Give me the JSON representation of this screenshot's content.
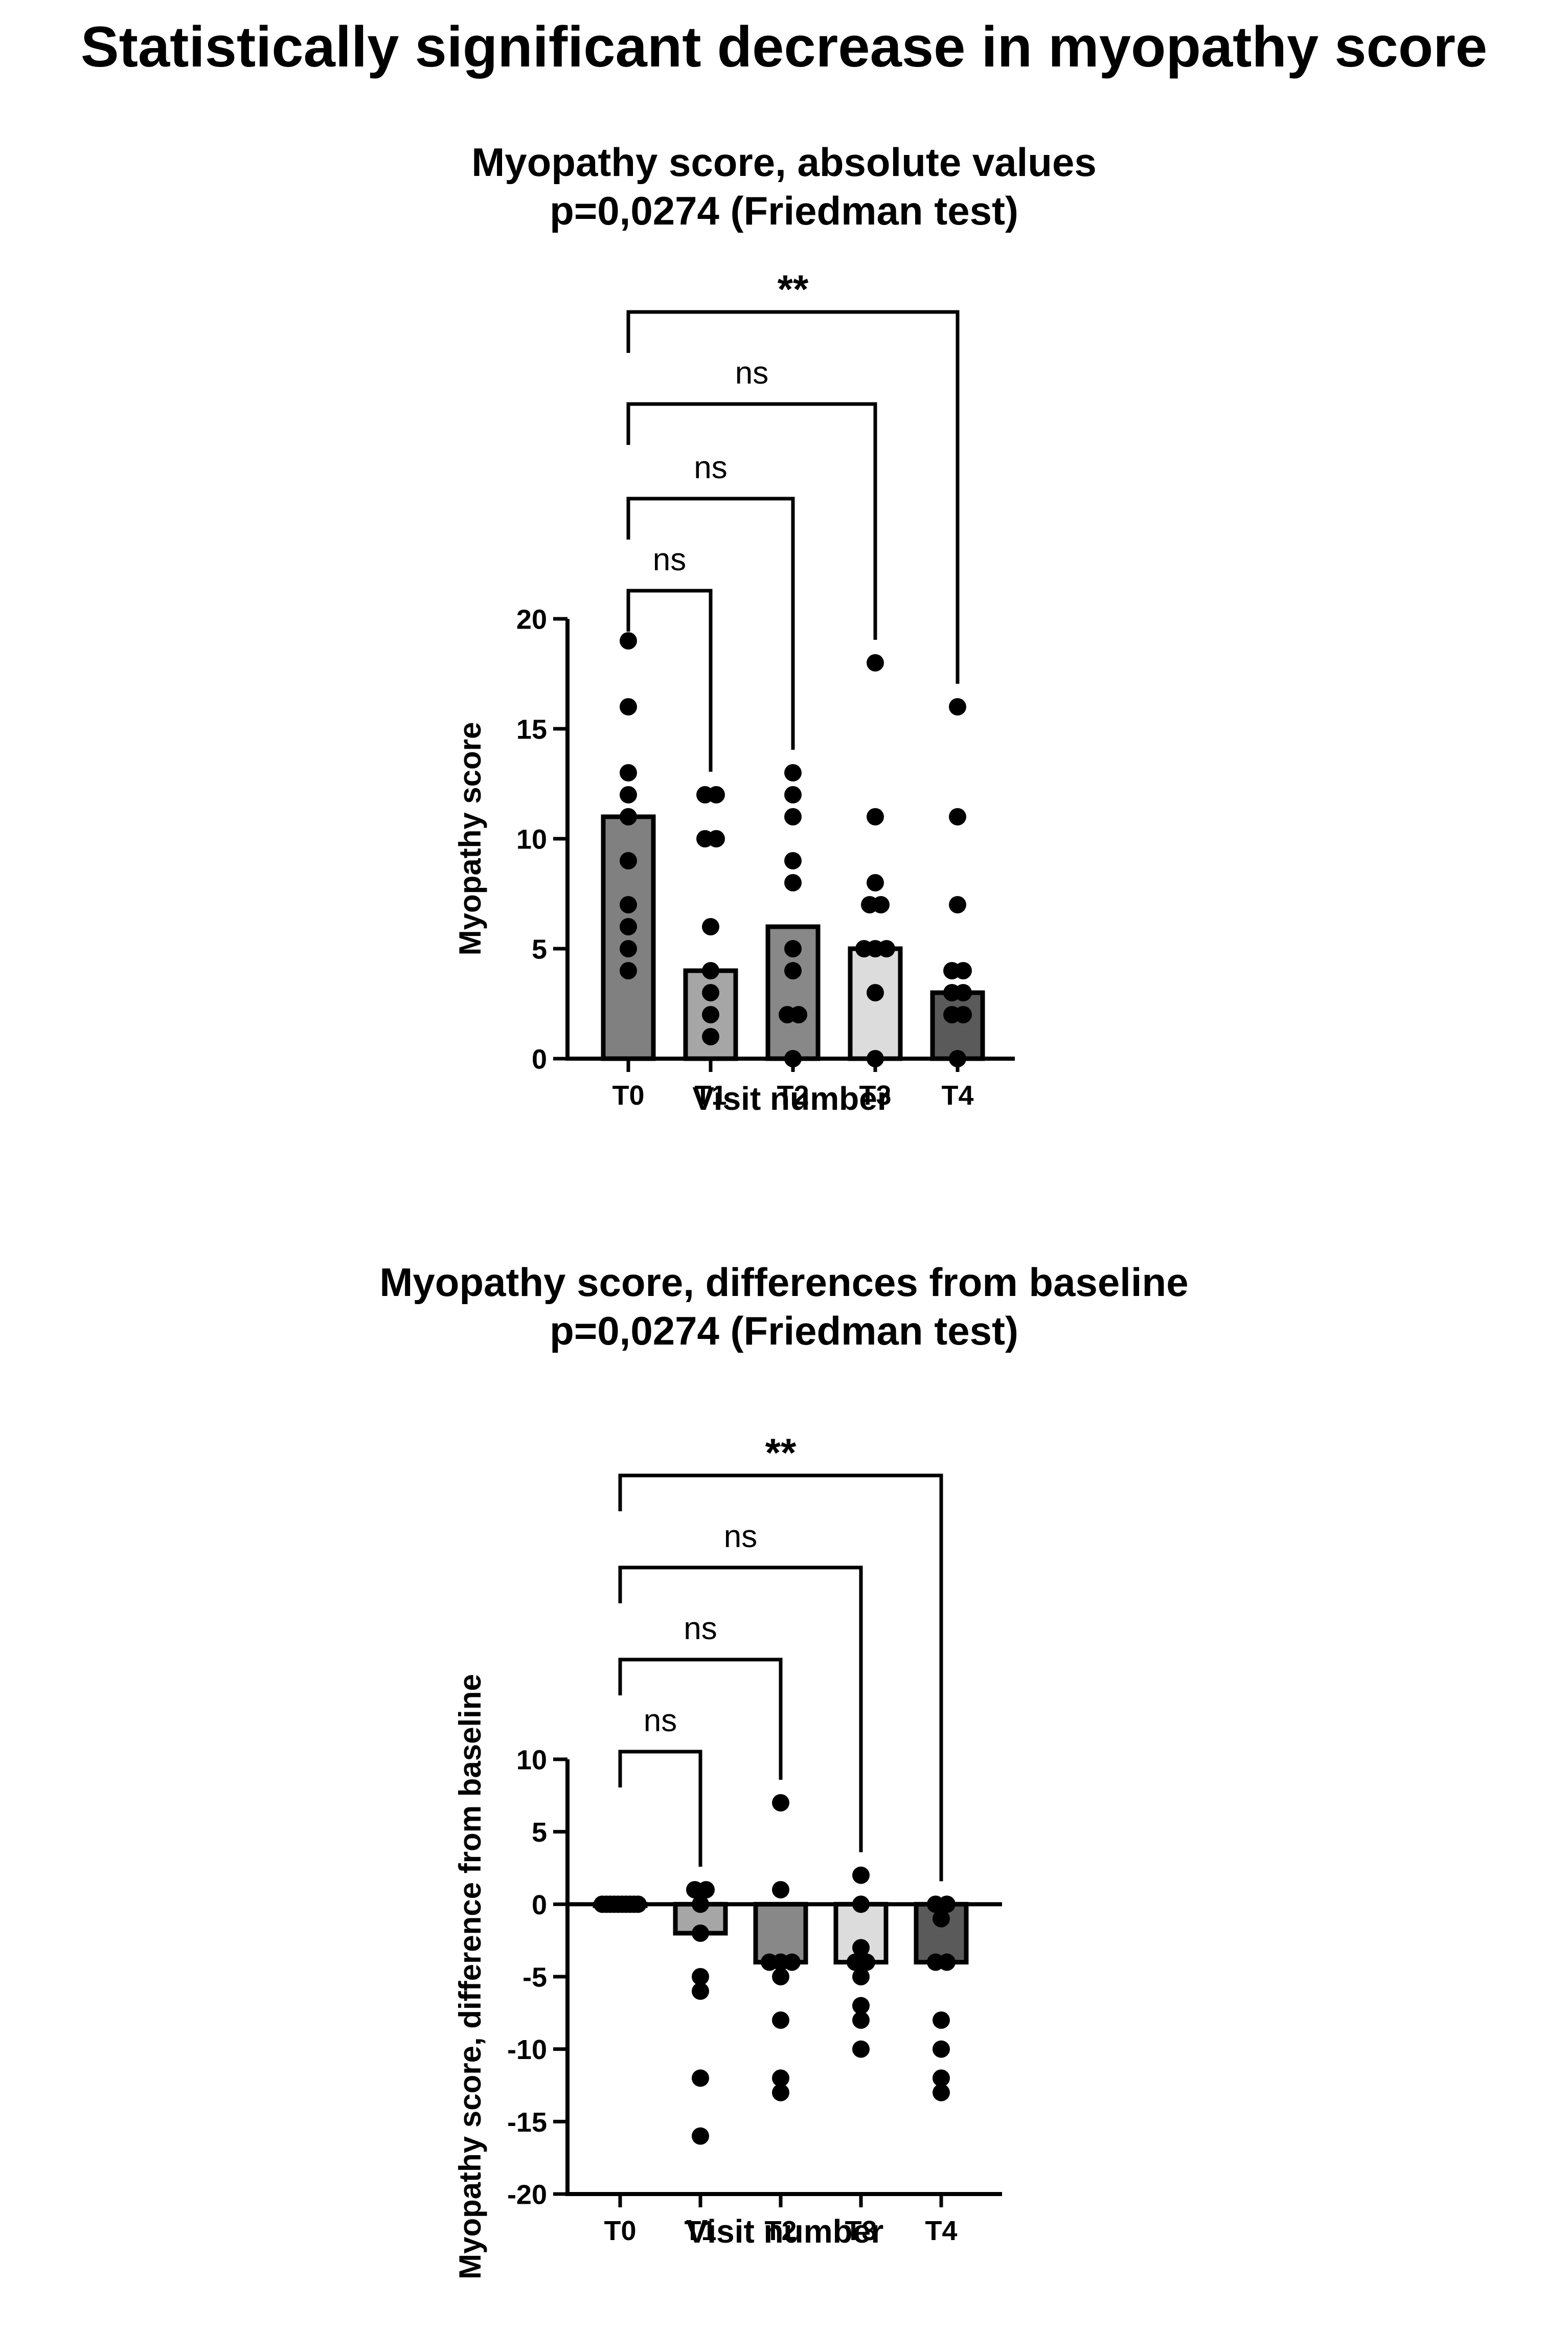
{
  "page": {
    "title": "Statistically significant decrease in myopathy score"
  },
  "colors": {
    "T0": "#808080",
    "T1": "#a6a6a6",
    "T2": "#888888",
    "T3": "#dcdcdc",
    "T4": "#5a5a5a",
    "ink": "#000000"
  },
  "chart_data": [
    {
      "type": "bar",
      "title": "Myopathy score, absolute values",
      "subtitle": "p=0,0274 (Friedman test)",
      "xlabel": "Visit number",
      "ylabel": "Myopathy score",
      "categories": [
        "T0",
        "T1",
        "T2",
        "T3",
        "T4"
      ],
      "values": [
        11,
        4,
        6,
        5,
        3
      ],
      "points": [
        [
          19,
          16,
          13,
          12,
          11,
          9,
          7,
          6,
          5,
          4
        ],
        [
          12,
          12,
          10,
          10,
          6,
          4,
          3,
          2,
          1
        ],
        [
          13,
          12,
          11,
          9,
          8,
          5,
          4,
          2,
          2,
          0
        ],
        [
          18,
          11,
          8,
          7,
          7,
          5,
          5,
          5,
          3,
          0
        ],
        [
          16,
          11,
          7,
          4,
          4,
          3,
          3,
          2,
          2,
          0
        ]
      ],
      "ylim": [
        0,
        20
      ],
      "yticks": [
        "0",
        "5",
        "10",
        "15",
        "20"
      ],
      "comparisons": [
        {
          "from": "T0",
          "to": "T1",
          "label": "ns"
        },
        {
          "from": "T0",
          "to": "T2",
          "label": "ns"
        },
        {
          "from": "T0",
          "to": "T3",
          "label": "ns"
        },
        {
          "from": "T0",
          "to": "T4",
          "label": "**"
        }
      ],
      "grid": false,
      "legend": "none"
    },
    {
      "type": "bar",
      "title": "Myopathy score, differences from baseline",
      "subtitle": "p=0,0274 (Friedman test)",
      "xlabel": "Visit number",
      "ylabel": "Myopathy score, difference from baseline",
      "categories": [
        "T0",
        "T1",
        "T2",
        "T3",
        "T4"
      ],
      "values": [
        0,
        -2,
        -4,
        -4,
        -4
      ],
      "points": [
        [
          0,
          0,
          0,
          0,
          0,
          0,
          0,
          0,
          0,
          0
        ],
        [
          1,
          1,
          0,
          -2,
          -5,
          -6,
          -12,
          -16
        ],
        [
          7,
          1,
          -4,
          -4,
          -4,
          -5,
          -8,
          -12,
          -13
        ],
        [
          2,
          0,
          -3,
          -4,
          -4,
          -5,
          -7,
          -8,
          -10
        ],
        [
          0,
          0,
          -1,
          -4,
          -4,
          -8,
          -10,
          -12,
          -13
        ]
      ],
      "ylim": [
        -20,
        10
      ],
      "yticks": [
        "-20",
        "-15",
        "-10",
        "-5",
        "0",
        "5",
        "10"
      ],
      "comparisons": [
        {
          "from": "T0",
          "to": "T1",
          "label": "ns"
        },
        {
          "from": "T0",
          "to": "T2",
          "label": "ns"
        },
        {
          "from": "T0",
          "to": "T3",
          "label": "ns"
        },
        {
          "from": "T0",
          "to": "T4",
          "label": "**"
        }
      ],
      "grid": false,
      "legend": "none"
    }
  ]
}
